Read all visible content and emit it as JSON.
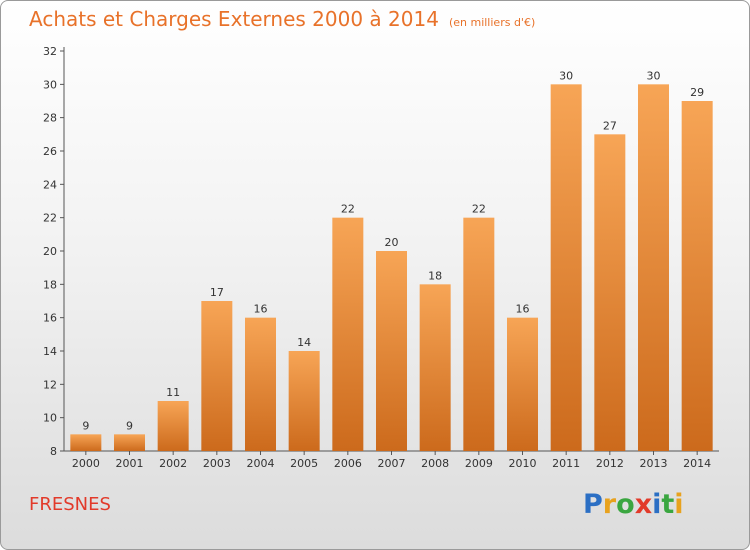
{
  "header": {
    "title": "Achats et Charges Externes 2000 à 2014",
    "subtitle": "(en milliers d'€)"
  },
  "footer": {
    "commune": "FRESNES",
    "logo": {
      "letters": [
        "P",
        "r",
        "o",
        "x",
        "i",
        "t",
        "i"
      ],
      "colors": [
        "#2b6fc4",
        "#e8a21e",
        "#3aa640",
        "#e23a2a",
        "#2b6fc4",
        "#3aa640",
        "#e8a21e"
      ]
    }
  },
  "chart_data": {
    "type": "bar",
    "categories": [
      "2000",
      "2001",
      "2002",
      "2003",
      "2004",
      "2005",
      "2006",
      "2007",
      "2008",
      "2009",
      "2010",
      "2011",
      "2012",
      "2013",
      "2014"
    ],
    "values": [
      9,
      9,
      11,
      17,
      16,
      14,
      22,
      20,
      18,
      22,
      16,
      30,
      27,
      30,
      29
    ],
    "value_labels": [
      "9",
      "9",
      "11",
      "17",
      "16",
      "14",
      "22",
      "20",
      "18",
      "22",
      "16",
      "30",
      "27",
      "30",
      "29"
    ],
    "yticks": [
      8,
      10,
      12,
      14,
      16,
      18,
      20,
      22,
      24,
      26,
      28,
      30,
      32
    ],
    "ytick_labels": [
      "8",
      "10",
      "12",
      "14",
      "16",
      "18",
      "20",
      "22",
      "24",
      "26",
      "28",
      "30",
      "32"
    ],
    "ylim": [
      8,
      32
    ],
    "grid": false,
    "legend": "none",
    "bar_color": "#f0913a",
    "axis_color": "#555555"
  }
}
